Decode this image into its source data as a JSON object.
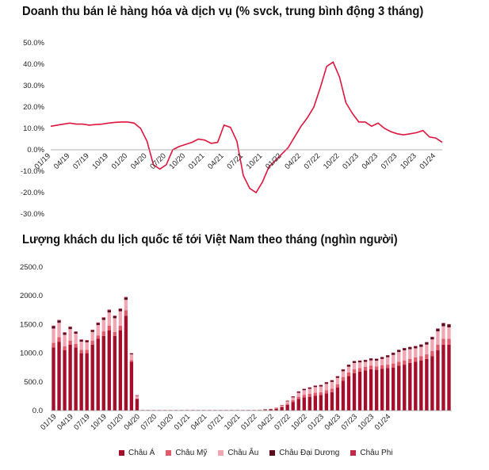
{
  "chart_data": [
    {
      "type": "line",
      "title": "Doanh thu bán lẻ hàng hóa và dịch vụ (% svck, trung bình động 3 tháng)",
      "x_tick_labels": [
        "01/19",
        "04/19",
        "07/19",
        "10/19",
        "01/20",
        "04/20",
        "07/20",
        "10/20",
        "01/21",
        "04/21",
        "07/21",
        "10/21",
        "01/22",
        "04/22",
        "07/22",
        "10/22",
        "01/23",
        "04/23",
        "07/23",
        "10/23",
        "01/24"
      ],
      "y_tick_labels": [
        "50.0%",
        "40.0%",
        "30.0%",
        "20.0%",
        "10.0%",
        "0.0%",
        "-10.0%",
        "-20.0%",
        "-30.0%"
      ],
      "ylim": [
        -30,
        50
      ],
      "color": "#e0143c",
      "series": [
        {
          "values": [
            11,
            11.5,
            12,
            12.5,
            12,
            12,
            11.5,
            11.8,
            12,
            12.5,
            12.8,
            13,
            13,
            12.5,
            10,
            4,
            -7,
            -9,
            -7,
            0,
            1.5,
            2.5,
            3.5,
            5,
            4.5,
            3,
            3.5,
            11.5,
            10.5,
            4,
            -12,
            -18,
            -20,
            -15,
            -8,
            -5,
            -2,
            1,
            6,
            11,
            15,
            20,
            29,
            39,
            41,
            34,
            22,
            17,
            13,
            13,
            11,
            12.5,
            10,
            8.5,
            7.5,
            7,
            7.5,
            8,
            9,
            6,
            5.5,
            3.5
          ]
        }
      ]
    },
    {
      "type": "bar",
      "stacked": true,
      "title": "Lượng khách du lịch quốc tế tới Việt Nam theo tháng (nghìn người)",
      "x_tick_labels": [
        "01/19",
        "04/19",
        "07/19",
        "10/19",
        "01/20",
        "04/20",
        "07/20",
        "10/20",
        "01/21",
        "04/21",
        "07/21",
        "10/21",
        "01/22",
        "04/22",
        "07/22",
        "10/22",
        "01/23",
        "04/23",
        "07/23",
        "10/23",
        "01/24"
      ],
      "y_tick_labels": [
        "2500.0",
        "2000.0",
        "1500.0",
        "1000.0",
        "500.0",
        "0.0"
      ],
      "ylim": [
        0,
        2500
      ],
      "legend_position": "bottom",
      "series": [
        {
          "name": "Châu Á",
          "color": "#a50d2a",
          "values": [
            1100,
            1200,
            1050,
            1150,
            1100,
            1000,
            1000,
            1150,
            1250,
            1300,
            1400,
            1300,
            1400,
            1650,
            850,
            200,
            8,
            8,
            8,
            8,
            8,
            8,
            8,
            8,
            8,
            8,
            8,
            8,
            8,
            8,
            8,
            8,
            8,
            8,
            8,
            10,
            10,
            12,
            15,
            20,
            30,
            60,
            100,
            150,
            200,
            230,
            240,
            260,
            270,
            300,
            320,
            400,
            520,
            600,
            650,
            680,
            700,
            720,
            710,
            730,
            740,
            750,
            780,
            800,
            830,
            850,
            870,
            900,
            950,
            1050,
            1150,
            1150
          ]
        },
        {
          "name": "Châu Mỹ",
          "color": "#e05a6a",
          "values": [
            80,
            80,
            70,
            70,
            60,
            60,
            60,
            70,
            60,
            80,
            80,
            70,
            80,
            100,
            30,
            10,
            1,
            1,
            1,
            1,
            1,
            1,
            1,
            1,
            1,
            1,
            1,
            1,
            1,
            1,
            1,
            1,
            1,
            1,
            1,
            1,
            1,
            1,
            2,
            3,
            5,
            10,
            20,
            30,
            40,
            45,
            50,
            50,
            50,
            55,
            60,
            60,
            65,
            65,
            70,
            60,
            60,
            65,
            60,
            60,
            60,
            70,
            70,
            70,
            70,
            75,
            80,
            80,
            90,
            100,
            100,
            100
          ]
        },
        {
          "name": "Châu Âu",
          "color": "#f0a7b3",
          "values": [
            250,
            250,
            200,
            200,
            180,
            140,
            130,
            150,
            180,
            200,
            230,
            240,
            250,
            180,
            100,
            50,
            2,
            2,
            2,
            2,
            2,
            2,
            2,
            2,
            2,
            2,
            2,
            2,
            2,
            2,
            2,
            2,
            2,
            2,
            2,
            2,
            2,
            2,
            3,
            5,
            10,
            20,
            40,
            50,
            70,
            80,
            90,
            100,
            100,
            110,
            120,
            110,
            100,
            100,
            110,
            100,
            90,
            90,
            100,
            110,
            130,
            150,
            170,
            180,
            170,
            160,
            160,
            170,
            200,
            230,
            220,
            200
          ]
        },
        {
          "name": "Châu Đại Dương",
          "color": "#5c0a1e",
          "values": [
            40,
            40,
            35,
            35,
            30,
            30,
            30,
            30,
            35,
            35,
            40,
            35,
            40,
            40,
            15,
            5,
            0,
            0,
            0,
            0,
            0,
            0,
            0,
            0,
            0,
            0,
            0,
            0,
            0,
            0,
            0,
            0,
            0,
            0,
            0,
            0,
            0,
            0,
            1,
            1,
            2,
            5,
            10,
            15,
            20,
            20,
            20,
            22,
            22,
            25,
            25,
            25,
            30,
            30,
            30,
            28,
            28,
            30,
            30,
            30,
            30,
            35,
            35,
            35,
            35,
            35,
            38,
            38,
            40,
            45,
            50,
            50
          ]
        },
        {
          "name": "Châu Phi",
          "color": "#c22a48",
          "values": [
            10,
            10,
            10,
            10,
            10,
            10,
            10,
            10,
            10,
            10,
            10,
            10,
            10,
            10,
            5,
            2,
            0,
            0,
            0,
            0,
            0,
            0,
            0,
            0,
            0,
            0,
            0,
            0,
            0,
            0,
            0,
            0,
            0,
            0,
            0,
            0,
            0,
            0,
            0,
            0,
            1,
            2,
            3,
            4,
            5,
            5,
            5,
            5,
            5,
            5,
            5,
            5,
            5,
            5,
            5,
            5,
            5,
            5,
            5,
            5,
            5,
            5,
            5,
            5,
            5,
            5,
            6,
            6,
            6,
            7,
            7,
            7
          ]
        }
      ]
    }
  ]
}
